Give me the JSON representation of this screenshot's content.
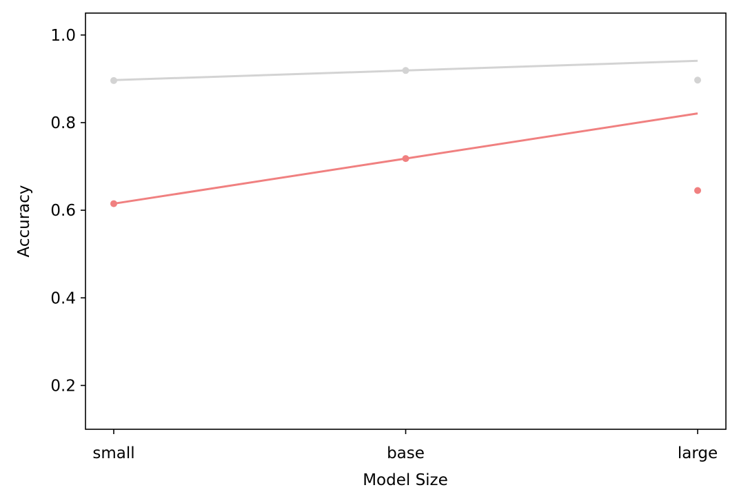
{
  "chart_data": {
    "type": "line",
    "title": "",
    "xlabel": "Model Size",
    "ylabel": "Accuracy",
    "categories": [
      "small",
      "base",
      "large"
    ],
    "ylim": [
      0.1,
      1.05
    ],
    "yticks": [
      0.2,
      0.4,
      0.6,
      0.8,
      1.0
    ],
    "yticks_labels": [
      "0.2",
      "0.4",
      "0.6",
      "0.8",
      "1.0"
    ],
    "grid": false,
    "legend": "none",
    "series": [
      {
        "color": "#d3d3d3",
        "points": [
          0.896,
          0.919,
          0.897
        ],
        "trend": [
          0.897,
          0.919,
          0.941
        ]
      },
      {
        "color": "#f08080",
        "points": [
          0.615,
          0.718,
          0.645
        ],
        "trend": [
          0.615,
          0.718,
          0.821
        ]
      }
    ]
  }
}
